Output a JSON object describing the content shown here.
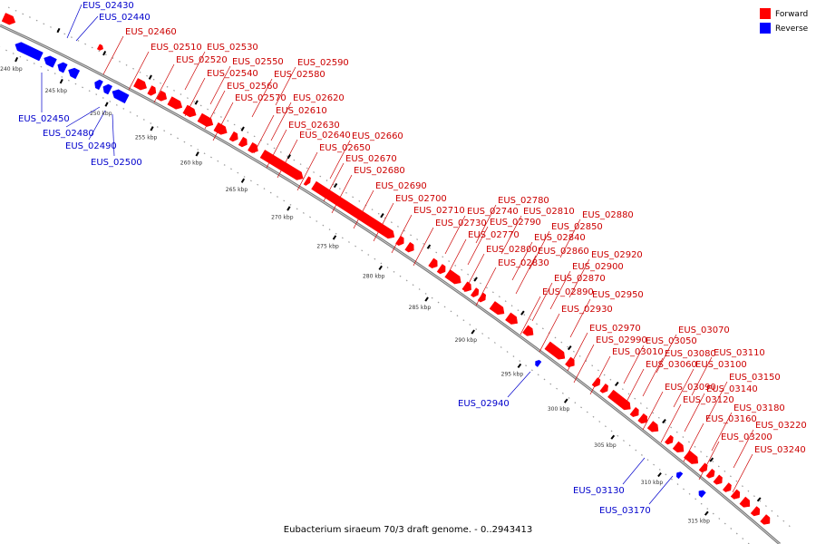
{
  "caption": "Eubacterium siraeum 70/3 draft genome. - 0..2943413",
  "legend": [
    {
      "label": "Forward",
      "color": "#ff0000"
    },
    {
      "label": "Reverse",
      "color": "#0000ff"
    }
  ],
  "colors": {
    "forward": "#ff0000",
    "reverse": "#0000ff",
    "forward_label": "#cc0000",
    "reverse_label": "#0000cc",
    "backbone": "#999999"
  },
  "ticks": [
    "240 kbp",
    "245 kbp",
    "250 kbp",
    "255 kbp",
    "260 kbp",
    "265 kbp",
    "270 kbp",
    "275 kbp",
    "280 kbp",
    "285 kbp",
    "290 kbp",
    "295 kbp",
    "300 kbp",
    "305 kbp",
    "310 kbp",
    "315 kbp"
  ],
  "forward_genes": [
    "EUS_02460",
    "EUS_02510",
    "EUS_02520",
    "EUS_02530",
    "EUS_02540",
    "EUS_02550",
    "EUS_02560",
    "EUS_02570",
    "EUS_02580",
    "EUS_02590",
    "EUS_02610",
    "EUS_02620",
    "EUS_02630",
    "EUS_02640",
    "EUS_02650",
    "EUS_02660",
    "EUS_02670",
    "EUS_02680",
    "EUS_02690",
    "EUS_02700",
    "EUS_02710",
    "EUS_02730",
    "EUS_02740",
    "EUS_02770",
    "EUS_02780",
    "EUS_02790",
    "EUS_02800",
    "EUS_02810",
    "EUS_02830",
    "EUS_02840",
    "EUS_02850",
    "EUS_02860",
    "EUS_02870",
    "EUS_02880",
    "EUS_02890",
    "EUS_02900",
    "EUS_02920",
    "EUS_02930",
    "EUS_02950",
    "EUS_02970",
    "EUS_02990",
    "EUS_03010",
    "EUS_03050",
    "EUS_03060",
    "EUS_03070",
    "EUS_03080",
    "EUS_03090",
    "EUS_03100",
    "EUS_03110",
    "EUS_03120",
    "EUS_03140",
    "EUS_03150",
    "EUS_03160",
    "EUS_03180",
    "EUS_03200",
    "EUS_03220",
    "EUS_03240"
  ],
  "reverse_genes": [
    "EUS_02430",
    "EUS_02440",
    "EUS_02450",
    "EUS_02480",
    "EUS_02490",
    "EUS_02500",
    "EUS_02940",
    "EUS_03130",
    "EUS_03170"
  ]
}
